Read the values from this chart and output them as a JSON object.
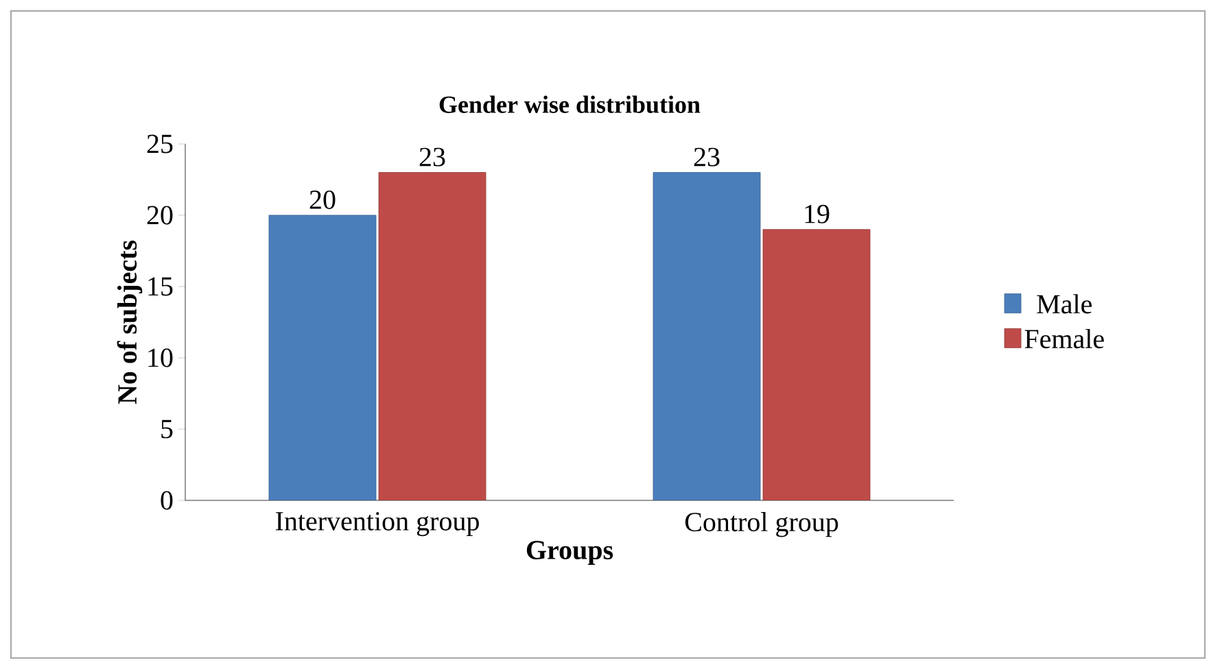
{
  "chart_data": {
    "type": "bar",
    "title": "Gender wise distribution",
    "xlabel": "Groups",
    "ylabel": "No of subjects",
    "categories": [
      "Intervention group",
      "Control group"
    ],
    "series": [
      {
        "name": "Male",
        "color": "#4a7ebb",
        "values": [
          20,
          23
        ]
      },
      {
        "name": "Female",
        "color": "#be4b48",
        "values": [
          23,
          19
        ]
      }
    ],
    "ylim": [
      0,
      25
    ],
    "yticks": [
      0,
      5,
      10,
      15,
      20,
      25
    ],
    "data_labels": true,
    "legend": "right",
    "grid": false
  }
}
